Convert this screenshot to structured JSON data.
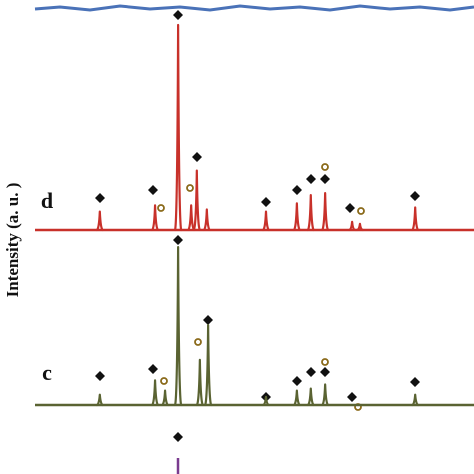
{
  "chart_data": {
    "type": "line",
    "ylabel": "Intensity (a. u. )",
    "xlim": [
      0,
      100
    ],
    "ylim": [
      0,
      100
    ],
    "series": [
      {
        "name": "d",
        "color": "#c8312a",
        "x": [
          14.9,
          27.6,
          32.9,
          35.9,
          37.2,
          39.5,
          53.1,
          60.2,
          63.4,
          66.7,
          72.9,
          74.7,
          87.4
        ],
        "values": [
          9,
          12,
          100,
          12,
          29,
          10,
          9,
          13,
          17,
          18,
          4,
          3,
          11
        ]
      },
      {
        "name": "c",
        "color": "#5a6332",
        "x": [
          14.9,
          27.6,
          29.9,
          32.9,
          37.9,
          39.8,
          53.1,
          60.2,
          63.4,
          66.7,
          87.4
        ],
        "values": [
          5,
          12,
          7,
          77,
          22,
          39,
          4,
          7,
          8,
          10,
          5
        ]
      }
    ]
  }
}
